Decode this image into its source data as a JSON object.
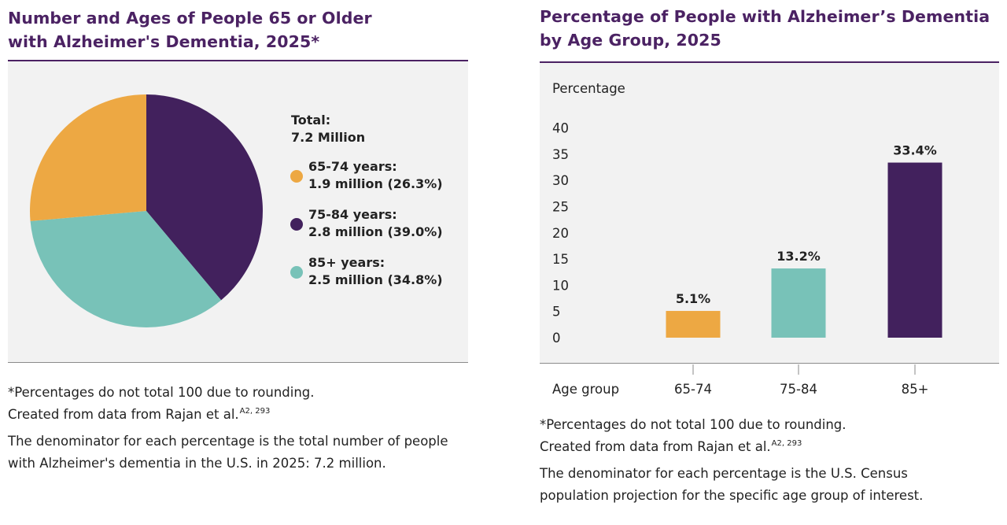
{
  "left": {
    "title_lines": [
      "Number and Ages of People 65 or Older",
      "with Alzheimer's Dementia, 2025*"
    ],
    "total_label": "Total:",
    "total_value": "7.2 Million",
    "legend": [
      {
        "label": "65-74 years:",
        "value": "1.9 million (26.3%)",
        "color": "#eda843"
      },
      {
        "label": "75-84 years:",
        "value": "2.8 million (39.0%)",
        "color": "#42215d"
      },
      {
        "label": "85+ years:",
        "value": "2.5 million (34.8%)",
        "color": "#78c2b8"
      }
    ],
    "notes": {
      "rounding": "*Percentages do not total 100 due to rounding.",
      "source": "Created from data from Rajan et al.",
      "source_sup": "A2, 293",
      "denominator_lines": [
        "The denominator for each percentage is the total number of people",
        "with Alzheimer's dementia in the U.S. in 2025: 7.2 million."
      ]
    }
  },
  "right": {
    "title_lines": [
      "Percentage of People with Alzheimer’s Dementia",
      "by Age Group, 2025"
    ],
    "notes": {
      "rounding": "*Percentages do not total 100 due to rounding.",
      "source": "Created from data from Rajan et al.",
      "source_sup": "A2, 293",
      "denominator_lines": [
        "The denominator for each percentage is the U.S. Census",
        "population projection for the specific age group of interest."
      ]
    }
  },
  "chart_data": [
    {
      "type": "pie",
      "title": "Number and Ages of People 65 or Older with Alzheimer's Dementia, 2025*",
      "total": "7.2 Million",
      "slices": [
        {
          "name": "65-74 years",
          "value": 1.9,
          "percent": 26.3,
          "color": "#eda843"
        },
        {
          "name": "75-84 years",
          "value": 2.8,
          "percent": 39.0,
          "color": "#42215d"
        },
        {
          "name": "85+ years",
          "value": 2.5,
          "percent": 34.8,
          "color": "#78c2b8"
        }
      ],
      "unit": "million",
      "legend_position": "right"
    },
    {
      "type": "bar",
      "title": "Percentage of People with Alzheimer’s Dementia by Age Group, 2025",
      "categories": [
        "65-74",
        "75-84",
        "85+"
      ],
      "values": [
        5.1,
        13.2,
        33.4
      ],
      "value_labels": [
        "5.1%",
        "13.2%",
        "33.4%"
      ],
      "colors": [
        "#eda843",
        "#78c2b8",
        "#42215d"
      ],
      "xlabel": "Age group",
      "ylabel": "Percentage",
      "yticks": [
        0,
        5,
        10,
        15,
        20,
        25,
        30,
        35,
        40
      ],
      "ylim": [
        0,
        40
      ],
      "grid": false
    }
  ]
}
